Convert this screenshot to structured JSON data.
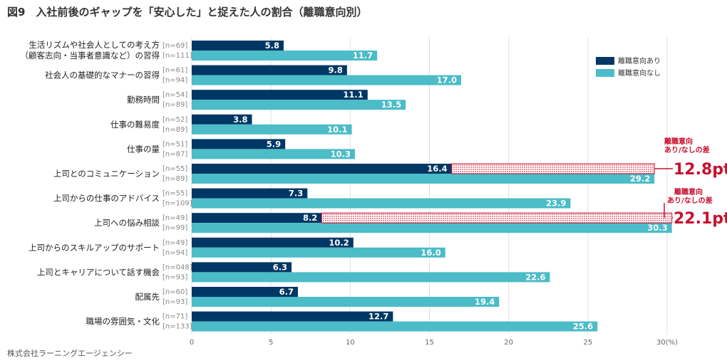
{
  "title": "図9　入社前後のギャップを「安心した」と捉えた人の割合（離職意向別）",
  "source": "株式会社ラーニングエージェンシー",
  "colors": {
    "with_intent": "#003764",
    "without_intent": "#4bbcc8",
    "accent": "#c8102e",
    "grid": "#e0e0e0"
  },
  "chart_data": {
    "type": "bar",
    "orientation": "horizontal",
    "title": "入社前後のギャップを「安心した」と捉えた人の割合（離職意向別）",
    "xlim": [
      0,
      30
    ],
    "xticks": [
      "0",
      "5",
      "10",
      "15",
      "20",
      "25",
      "30(%)"
    ],
    "xtick_values": [
      0,
      5,
      10,
      15,
      20,
      25,
      30
    ],
    "legend_position": "top-right",
    "categories": [
      [
        "生活リズムや社会人としての考え方",
        "（顧客志向・当事者意識など）の習得"
      ],
      [
        "社会人の基礎的なマナーの習得"
      ],
      [
        "勤務時間"
      ],
      [
        "仕事の難易度"
      ],
      [
        "仕事の量"
      ],
      [
        "上司とのコミュニケーション"
      ],
      [
        "上司からの仕事のアドバイス"
      ],
      [
        "上司への悩み相談"
      ],
      [
        "上司からのスキルアップのサポート"
      ],
      [
        "上司とキャリアについて話す機会"
      ],
      [
        "配属先"
      ],
      [
        "職場の雰囲気・文化"
      ]
    ],
    "series": [
      {
        "name": "離職意向あり",
        "values": [
          5.8,
          9.8,
          11.1,
          3.8,
          5.9,
          16.4,
          7.3,
          8.2,
          10.2,
          6.3,
          6.7,
          12.7
        ],
        "labels": [
          "5.8",
          "9.8",
          "11.1",
          "3.8",
          "5.9",
          "16.4",
          "7.3",
          "8.2",
          "10.2",
          "6.3",
          "6.7",
          "12.7"
        ],
        "n": [
          "[n=69]",
          "[n=61]",
          "[n=54]",
          "[n=52]",
          "[n=51]",
          "[n=55]",
          "[n=55]",
          "[n=49]",
          "[n=49]",
          "[n=048]",
          "[n=60]",
          "[n=71]"
        ]
      },
      {
        "name": "離職意向なし",
        "values": [
          11.7,
          17.0,
          13.5,
          10.1,
          10.3,
          29.2,
          23.9,
          30.3,
          16.0,
          22.6,
          19.4,
          25.6
        ],
        "labels": [
          "11.7",
          "17.0",
          "13.5",
          "10.1",
          "10.3",
          "29.2",
          "23.9",
          "30.3",
          "16.0",
          "22.6",
          "19.4",
          "25.6"
        ],
        "n": [
          "[n=111]",
          "[n=94]",
          "[n=89]",
          "[n=89]",
          "[n=87]",
          "[n=89]",
          "[n=109]",
          "[n=99]",
          "[n=94]",
          "[n=93]",
          "[n=93]",
          "[n=133]"
        ]
      }
    ],
    "annotations": [
      {
        "category_index": 5,
        "line1": "離職意向",
        "line2": "あり/なしの差",
        "value": "12.8pt"
      },
      {
        "category_index": 7,
        "line1": "離職意向",
        "line2": "あり/なしの差",
        "value": "22.1pt"
      }
    ]
  }
}
